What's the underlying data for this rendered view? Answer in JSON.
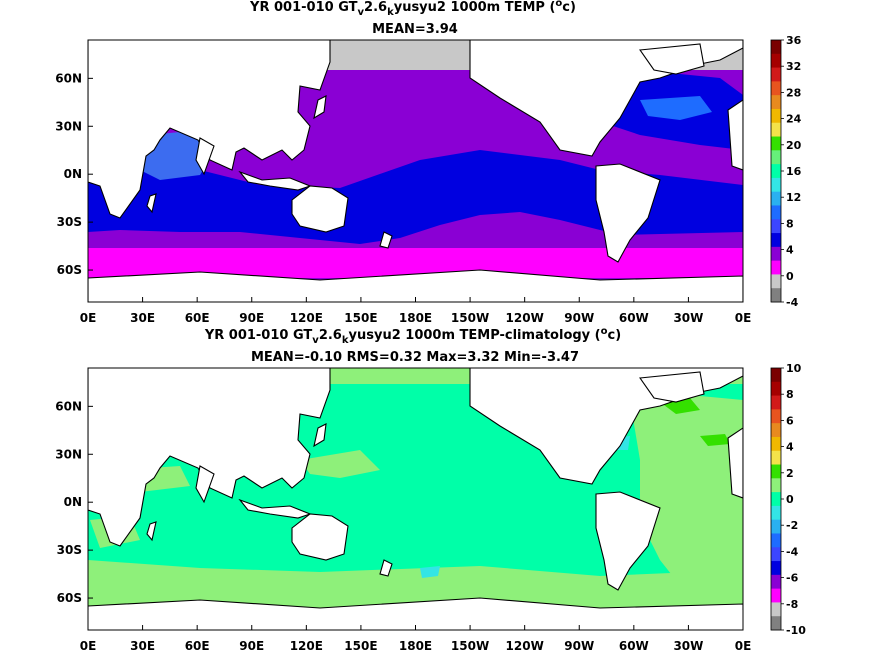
{
  "panels": [
    {
      "title_main": "YR 001-010 GT",
      "title_sub1": "v",
      "title_mid": "2.6",
      "title_sub2": "k",
      "title_rest": "yusyu2 1000m TEMP (",
      "title_sup": "o",
      "title_unit": "c)",
      "stats": "MEAN=3.94",
      "colorbar": {
        "labels": [
          "36",
          "32",
          "28",
          "24",
          "20",
          "16",
          "12",
          "8",
          "4",
          "0",
          "-4"
        ],
        "colors": [
          "#7a0000",
          "#a50000",
          "#d11a1a",
          "#e8541f",
          "#e88a1f",
          "#f0b800",
          "#f4e34a",
          "#34e000",
          "#66f07a",
          "#00ffa8",
          "#33e5e5",
          "#2ab0f0",
          "#1e6cff",
          "#3c46ff",
          "#0000e0",
          "#8a00d4",
          "#ff00ff",
          "#c8c8c8",
          "#808080"
        ]
      },
      "xticks": [
        "0E",
        "30E",
        "60E",
        "90E",
        "120E",
        "150E",
        "180E",
        "150W",
        "120W",
        "90W",
        "60W",
        "30W",
        "0E"
      ],
      "yticks": [
        "60N",
        "30N",
        "0N",
        "30S",
        "60S"
      ]
    },
    {
      "title_main": "YR 001-010 GT",
      "title_sub1": "v",
      "title_mid": "2.6",
      "title_sub2": "k",
      "title_rest": "yusyu2 1000m TEMP-climatology (",
      "title_sup": "o",
      "title_unit": "c)",
      "stats": "MEAN=-0.10   RMS=0.32   Max=3.32   Min=-3.47",
      "colorbar": {
        "labels": [
          "10",
          "8",
          "6",
          "4",
          "2",
          "0",
          "-2",
          "-4",
          "-6",
          "-8",
          "-10"
        ],
        "colors": [
          "#7a0000",
          "#a50000",
          "#d11a1a",
          "#e8541f",
          "#e88a1f",
          "#f0b800",
          "#f4e34a",
          "#34e000",
          "#8ef07a",
          "#00ffa8",
          "#33e5e5",
          "#2ab0f0",
          "#1e6cff",
          "#3c46ff",
          "#0000e0",
          "#8a00d4",
          "#ff00ff",
          "#c8c8c8",
          "#808080"
        ]
      },
      "xticks": [
        "0E",
        "30E",
        "60E",
        "90E",
        "120E",
        "150E",
        "180E",
        "150W",
        "120W",
        "90W",
        "60W",
        "30W",
        "0E"
      ],
      "yticks": [
        "60N",
        "30N",
        "0N",
        "30S",
        "60S"
      ]
    }
  ]
}
